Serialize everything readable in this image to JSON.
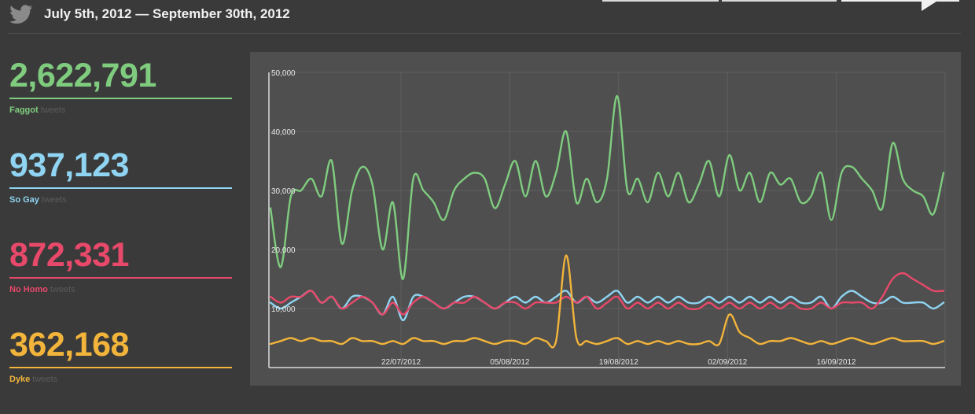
{
  "header": {
    "date_range": "July 5th, 2012 — September 30th, 2012",
    "icon": "twitter-bird-icon"
  },
  "stats": [
    {
      "count": "2,622,791",
      "name": "Faggot",
      "suffix": "tweets",
      "color": "#7fcc7f"
    },
    {
      "count": "937,123",
      "name": "So Gay",
      "suffix": "tweets",
      "color": "#8fd4f2"
    },
    {
      "count": "872,331",
      "name": "No Homo",
      "suffix": "tweets",
      "color": "#e8496a"
    },
    {
      "count": "362,168",
      "name": "Dyke",
      "suffix": "tweets",
      "color": "#f2b43a"
    }
  ],
  "chart_data": {
    "type": "line",
    "x_start": "05/07/2012",
    "x_end": "30/09/2012",
    "ylim": [
      0,
      50000
    ],
    "yticks": [
      {
        "value": 10000,
        "label": "10,000"
      },
      {
        "value": 20000,
        "label": "20,000"
      },
      {
        "value": 30000,
        "label": "30,000"
      },
      {
        "value": 40000,
        "label": "40,000"
      },
      {
        "value": 50000,
        "label": "50,000"
      }
    ],
    "xticks": [
      {
        "date": "22/07/2012",
        "label": "22/07/2012"
      },
      {
        "date": "05/08/2012",
        "label": "05/08/2012"
      },
      {
        "date": "19/08/2012",
        "label": "19/08/2012"
      },
      {
        "date": "02/09/2012",
        "label": "02/09/2012"
      },
      {
        "date": "16/09/2012",
        "label": "16/09/2012"
      }
    ],
    "grid": true,
    "legend": "none",
    "series": [
      {
        "color": "#7fcc7f",
        "values": [
          27000,
          17000,
          29000,
          30000,
          32000,
          29000,
          35000,
          21000,
          30000,
          34000,
          31000,
          20000,
          28000,
          15000,
          32000,
          30000,
          28000,
          25000,
          30000,
          32000,
          33000,
          32000,
          27000,
          31000,
          35000,
          29000,
          35000,
          29000,
          33000,
          40000,
          28000,
          32000,
          28000,
          32000,
          46000,
          30000,
          32000,
          28000,
          33000,
          29000,
          33000,
          28000,
          31000,
          35000,
          29000,
          36000,
          30000,
          33000,
          28000,
          33000,
          31000,
          32000,
          28000,
          29000,
          33000,
          25000,
          33000,
          34000,
          32000,
          30000,
          27000,
          38000,
          32000,
          30000,
          29000,
          26000,
          33000
        ]
      },
      {
        "color": "#8fd4f2",
        "values": [
          11000,
          10000,
          11000,
          12000,
          13000,
          11000,
          12000,
          10000,
          12000,
          12000,
          11000,
          9000,
          12000,
          8000,
          12000,
          12000,
          11000,
          10000,
          11000,
          12000,
          12000,
          11000,
          10000,
          11000,
          12000,
          11000,
          12000,
          11000,
          12000,
          13000,
          11000,
          12000,
          11000,
          12000,
          13000,
          11000,
          12000,
          11000,
          12000,
          11000,
          12000,
          11000,
          11000,
          12000,
          11000,
          12000,
          11000,
          12000,
          11000,
          12000,
          11000,
          12000,
          11000,
          11000,
          12000,
          10000,
          12000,
          13000,
          12000,
          11000,
          11000,
          12000,
          11000,
          11000,
          11000,
          10000,
          11000
        ]
      },
      {
        "color": "#e8496a",
        "values": [
          12000,
          11000,
          12000,
          12000,
          13000,
          11000,
          12000,
          10000,
          11000,
          12000,
          11000,
          9000,
          11000,
          9000,
          11000,
          12000,
          11000,
          10000,
          11000,
          11000,
          12000,
          11000,
          10000,
          11000,
          11000,
          10000,
          11000,
          11000,
          11000,
          12000,
          11000,
          12000,
          10000,
          11000,
          12000,
          10000,
          11000,
          10000,
          11000,
          10000,
          11000,
          10000,
          10000,
          11000,
          10000,
          11000,
          10000,
          11000,
          10000,
          11000,
          10000,
          11000,
          10000,
          10000,
          11000,
          10000,
          11000,
          11000,
          11000,
          10000,
          12000,
          15000,
          16000,
          15000,
          14000,
          13000,
          13000
        ]
      },
      {
        "color": "#f2b43a",
        "values": [
          4000,
          4500,
          5000,
          4500,
          5000,
          4500,
          4500,
          4000,
          5000,
          4500,
          4500,
          4000,
          4500,
          4000,
          5000,
          4500,
          4500,
          4000,
          4500,
          4500,
          5000,
          4500,
          4000,
          4500,
          4500,
          4000,
          5000,
          4500,
          4500,
          19000,
          5000,
          4500,
          4000,
          4500,
          5000,
          4000,
          4500,
          4000,
          4500,
          4000,
          4500,
          4000,
          4000,
          4500,
          4000,
          9000,
          6000,
          5000,
          4000,
          4500,
          4500,
          5000,
          4500,
          4000,
          4500,
          4000,
          4500,
          5000,
          4500,
          4000,
          4500,
          5000,
          4500,
          4500,
          4500,
          4000,
          4500
        ]
      }
    ]
  }
}
